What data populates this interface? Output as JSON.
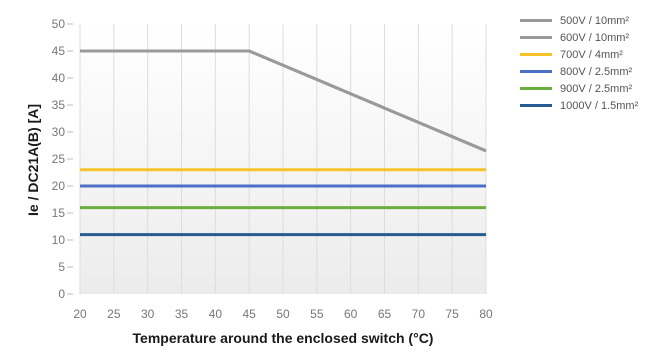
{
  "chart_data": {
    "type": "line",
    "xlabel": "Temperature around the enclosed switch (°C)",
    "ylabel": "Ie / DC21A(B) [A]",
    "xlim": [
      20,
      80
    ],
    "ylim": [
      0,
      50
    ],
    "x_ticks": [
      "20",
      "25",
      "30",
      "35",
      "40",
      "45",
      "50",
      "55",
      "60",
      "65",
      "70",
      "75",
      "80"
    ],
    "y_ticks": [
      "50",
      "45",
      "40",
      "35",
      "30",
      "25",
      "20",
      "15",
      "10",
      "5",
      "0"
    ],
    "grid": "vertical",
    "legend_position": "top-right",
    "series": [
      {
        "name": "500V / 10mm²",
        "color": "#9a9a9a",
        "x": [
          20,
          45,
          80
        ],
        "y": [
          45,
          45,
          26.5
        ]
      },
      {
        "name": "600V / 10mm²",
        "color": "#9a9a9a",
        "x": [
          20,
          45,
          80
        ],
        "y": [
          45,
          45,
          26.5
        ]
      },
      {
        "name": "700V / 4mm²",
        "color": "#f7c32a",
        "x": [
          20,
          80
        ],
        "y": [
          23,
          23
        ]
      },
      {
        "name": "800V / 2.5mm²",
        "color": "#4c6fc7",
        "x": [
          20,
          80
        ],
        "y": [
          20,
          20
        ]
      },
      {
        "name": "900V / 2.5mm²",
        "color": "#6aae3c",
        "x": [
          20,
          80
        ],
        "y": [
          16,
          16
        ]
      },
      {
        "name": "1000V / 1.5mm²",
        "color": "#275b92",
        "x": [
          20,
          80
        ],
        "y": [
          11,
          11
        ]
      }
    ]
  }
}
